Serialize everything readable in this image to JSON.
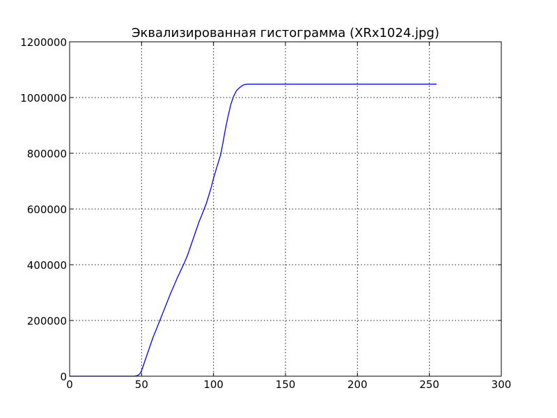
{
  "chart_data": {
    "type": "line",
    "title": "Эквализированная гистограмма (XRx1024.jpg)",
    "xlabel": "",
    "ylabel": "",
    "xlim": [
      0,
      300
    ],
    "ylim": [
      0,
      1200000
    ],
    "xticks": [
      0,
      50,
      100,
      150,
      200,
      250,
      300
    ],
    "yticks": [
      0,
      200000,
      400000,
      600000,
      800000,
      1000000,
      1200000
    ],
    "xtick_labels": [
      "0",
      "50",
      "100",
      "150",
      "200",
      "250",
      "300"
    ],
    "ytick_labels": [
      "0",
      "200000",
      "400000",
      "600000",
      "800000",
      "1000000",
      "1200000"
    ],
    "grid": true,
    "legend": "none",
    "series": [
      {
        "color": "#0000ff",
        "x": [
          0,
          10,
          20,
          30,
          40,
          45,
          47,
          48,
          49,
          50,
          51,
          52,
          54,
          56,
          58,
          60,
          65,
          70,
          75,
          80,
          82,
          85,
          88,
          90,
          92,
          95,
          98,
          100,
          102,
          105,
          107,
          108,
          110,
          112,
          114,
          116,
          118,
          120,
          122,
          124,
          126,
          130,
          140,
          150,
          170,
          200,
          230,
          255
        ],
        "y": [
          0,
          0,
          0,
          0,
          0,
          0,
          2000,
          5000,
          10000,
          20000,
          35000,
          50000,
          80000,
          110000,
          140000,
          165000,
          230000,
          295000,
          355000,
          410000,
          435000,
          480000,
          525000,
          555000,
          580000,
          620000,
          670000,
          710000,
          745000,
          795000,
          850000,
          880000,
          930000,
          975000,
          1005000,
          1025000,
          1035000,
          1043000,
          1047000,
          1048000,
          1048000,
          1048000,
          1048000,
          1048000,
          1048000,
          1048000,
          1048000,
          1048000
        ]
      }
    ]
  }
}
